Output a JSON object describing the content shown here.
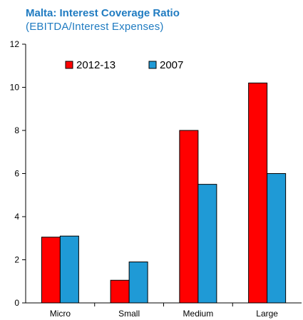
{
  "chart_data": {
    "type": "bar",
    "title": "Malta: Interest Coverage Ratio",
    "subtitle": "(EBITDA/Interest  Expenses)",
    "categories": [
      "Micro",
      "Small",
      "Medium",
      "Large"
    ],
    "series": [
      {
        "name": "2012-13",
        "color": "#ff0000",
        "values": [
          3.05,
          1.05,
          8.0,
          10.2
        ]
      },
      {
        "name": "2007",
        "color": "#1f9ad6",
        "values": [
          3.1,
          1.9,
          5.5,
          6.0
        ]
      }
    ],
    "yticks": [
      "0",
      "2",
      "4",
      "6",
      "8",
      "10",
      "12"
    ],
    "ylim": [
      0,
      12
    ],
    "xlabel": "",
    "ylabel": "",
    "grid": false,
    "legend_position": "top-left"
  }
}
